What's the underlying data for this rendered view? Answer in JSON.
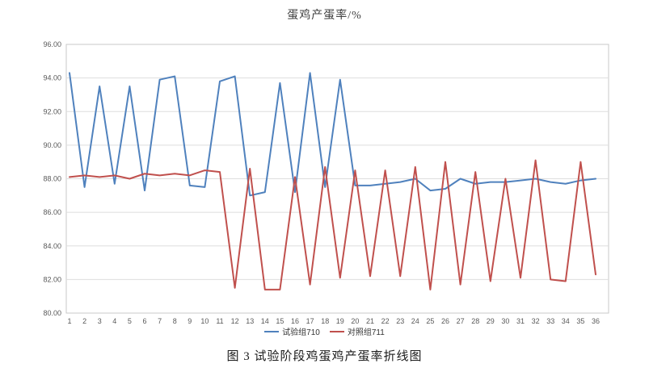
{
  "chart_data": {
    "type": "line",
    "title": "蛋鸡产蛋率/%",
    "xlabel": "",
    "ylabel": "",
    "x": [
      1,
      2,
      3,
      4,
      5,
      6,
      7,
      8,
      9,
      10,
      11,
      12,
      13,
      14,
      15,
      16,
      17,
      18,
      19,
      20,
      21,
      22,
      23,
      24,
      25,
      26,
      27,
      28,
      29,
      30,
      31,
      32,
      33,
      34,
      35,
      36
    ],
    "ylim": [
      80,
      96
    ],
    "ytick_step": 2,
    "ytick_format_decimals": 2,
    "grid": "horizontal",
    "grid_color": "#dedede",
    "border_color": "#c9c9c9",
    "axis_label_color": "#595959",
    "legend_position": "bottom",
    "series": [
      {
        "name": "试验组710",
        "color": "#4F81BD",
        "values": [
          94.3,
          87.5,
          93.5,
          87.7,
          93.5,
          87.3,
          93.9,
          94.1,
          87.6,
          87.5,
          93.8,
          94.1,
          87.0,
          87.2,
          93.7,
          87.2,
          94.3,
          87.5,
          93.9,
          87.6,
          87.6,
          87.7,
          87.8,
          88.0,
          87.3,
          87.4,
          88.0,
          87.7,
          87.8,
          87.8,
          87.9,
          88.0,
          87.8,
          87.7,
          87.9,
          88.0
        ]
      },
      {
        "name": "对照组711",
        "color": "#C0504D",
        "values": [
          88.1,
          88.2,
          88.1,
          88.2,
          88.0,
          88.3,
          88.2,
          88.3,
          88.2,
          88.5,
          88.4,
          81.5,
          88.6,
          81.4,
          81.4,
          88.1,
          81.7,
          88.7,
          82.1,
          88.5,
          82.2,
          88.5,
          82.2,
          88.7,
          81.4,
          89.0,
          81.7,
          88.4,
          81.9,
          88.0,
          82.1,
          89.1,
          82.0,
          81.9,
          89.0,
          82.3
        ]
      }
    ]
  },
  "caption": "图 3 试验阶段鸡蛋鸡产蛋率折线图"
}
